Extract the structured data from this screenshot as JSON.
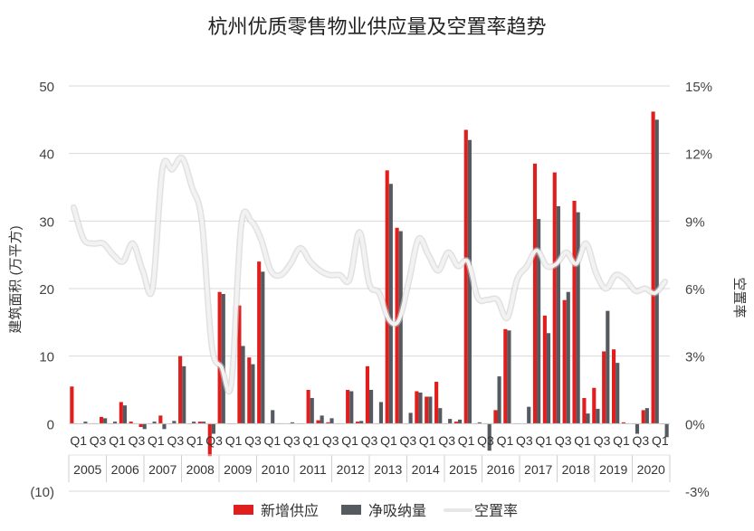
{
  "chart_data": {
    "type": "bar",
    "title": "杭州优质零售物业供应量及空置率趋势",
    "ylabel": "建筑面积 (万平方)",
    "y2label": "空置率",
    "ylim": [
      -10,
      50
    ],
    "y_ticks": [
      "(10)",
      "0",
      "10",
      "20",
      "30",
      "40",
      "50"
    ],
    "y2lim": [
      -3,
      15
    ],
    "y2_ticks": [
      "-3%",
      "0%",
      "3%",
      "6%",
      "9%",
      "12%",
      "15%"
    ],
    "grid": true,
    "legend_position": "bottom",
    "legend": [
      "新增供应",
      "净吸纳量",
      "空置率"
    ],
    "colors": {
      "supply": "#e01e1e",
      "absorption": "#555a60",
      "vacancy": "#f2f2f2"
    },
    "quarter_labels": [
      "Q1",
      "Q3",
      "Q1",
      "Q3",
      "Q1",
      "Q3",
      "Q1",
      "Q3",
      "Q1",
      "Q3",
      "Q1",
      "Q3",
      "Q1",
      "Q3",
      "Q1",
      "Q3",
      "Q1",
      "Q3",
      "Q1",
      "Q3",
      "Q1",
      "Q3",
      "Q1",
      "Q3",
      "Q1",
      "Q3",
      "Q1",
      "Q3",
      "Q1",
      "Q3",
      "Q1"
    ],
    "years": [
      "2005",
      "2006",
      "2007",
      "2008",
      "2009",
      "2010",
      "2011",
      "2012",
      "2013",
      "2014",
      "2015",
      "2016",
      "2017",
      "2018",
      "2019",
      "2020"
    ],
    "series": [
      {
        "name": "新增供应",
        "values": [
          5.5,
          0,
          0,
          1,
          0,
          3.2,
          0.3,
          -0.5,
          0,
          1.2,
          0,
          10,
          0,
          0.3,
          -4.8,
          19.5,
          0,
          17.5,
          9.8,
          24,
          0,
          0,
          0,
          0,
          5,
          0.5,
          0.2,
          0,
          5,
          0.3,
          8.5,
          0,
          37.5,
          29,
          0,
          4.8,
          4,
          6.2,
          0,
          0.3,
          43.5,
          0,
          0,
          2,
          14,
          0,
          0,
          38.5,
          16,
          37.2,
          18.3,
          33,
          3.8,
          5.3,
          10.7,
          11,
          0.2,
          0,
          2,
          46.2,
          0
        ]
      },
      {
        "name": "净吸纳量",
        "values": [
          0,
          0.3,
          0,
          0.8,
          0.3,
          2.7,
          0,
          -0.8,
          0.3,
          -0.8,
          0.4,
          8.5,
          0.3,
          0.3,
          -1.5,
          19.2,
          0,
          11.5,
          8.8,
          22.5,
          2,
          0,
          0.2,
          0,
          3.8,
          1.2,
          0.8,
          0,
          4.8,
          0.4,
          5,
          3.2,
          35.5,
          28.5,
          1.6,
          4.6,
          4,
          2.3,
          0.7,
          0.6,
          42,
          0.2,
          -4,
          7,
          13.8,
          0,
          2.5,
          30.3,
          13.4,
          32.2,
          19.5,
          31.3,
          1.5,
          2.2,
          16.7,
          9,
          0,
          -1.5,
          2.3,
          45,
          -2
        ]
      },
      {
        "name": "空置率",
        "values": [
          9.6,
          8.2,
          8.0,
          8.0,
          7.5,
          7.2,
          8.0,
          6.8,
          6.0,
          11.3,
          11.3,
          11.8,
          10.5,
          9.0,
          3.5,
          2.5,
          1.8,
          8.8,
          9.0,
          8.2,
          6.8,
          6.6,
          7.1,
          7.8,
          7.2,
          6.8,
          6.6,
          6.6,
          6.4,
          8.5,
          6.2,
          5.8,
          4.6,
          4.6,
          6.3,
          8.2,
          7.5,
          6.8,
          7.6,
          7.0,
          7.2,
          5.6,
          5.5,
          5.5,
          4.7,
          6.4,
          7.0,
          7.7,
          7.0,
          7.1,
          7.6,
          7.1,
          8.0,
          6.7,
          6.0,
          6.6,
          6.4,
          5.9,
          6.0,
          5.8,
          6.3
        ]
      }
    ]
  }
}
